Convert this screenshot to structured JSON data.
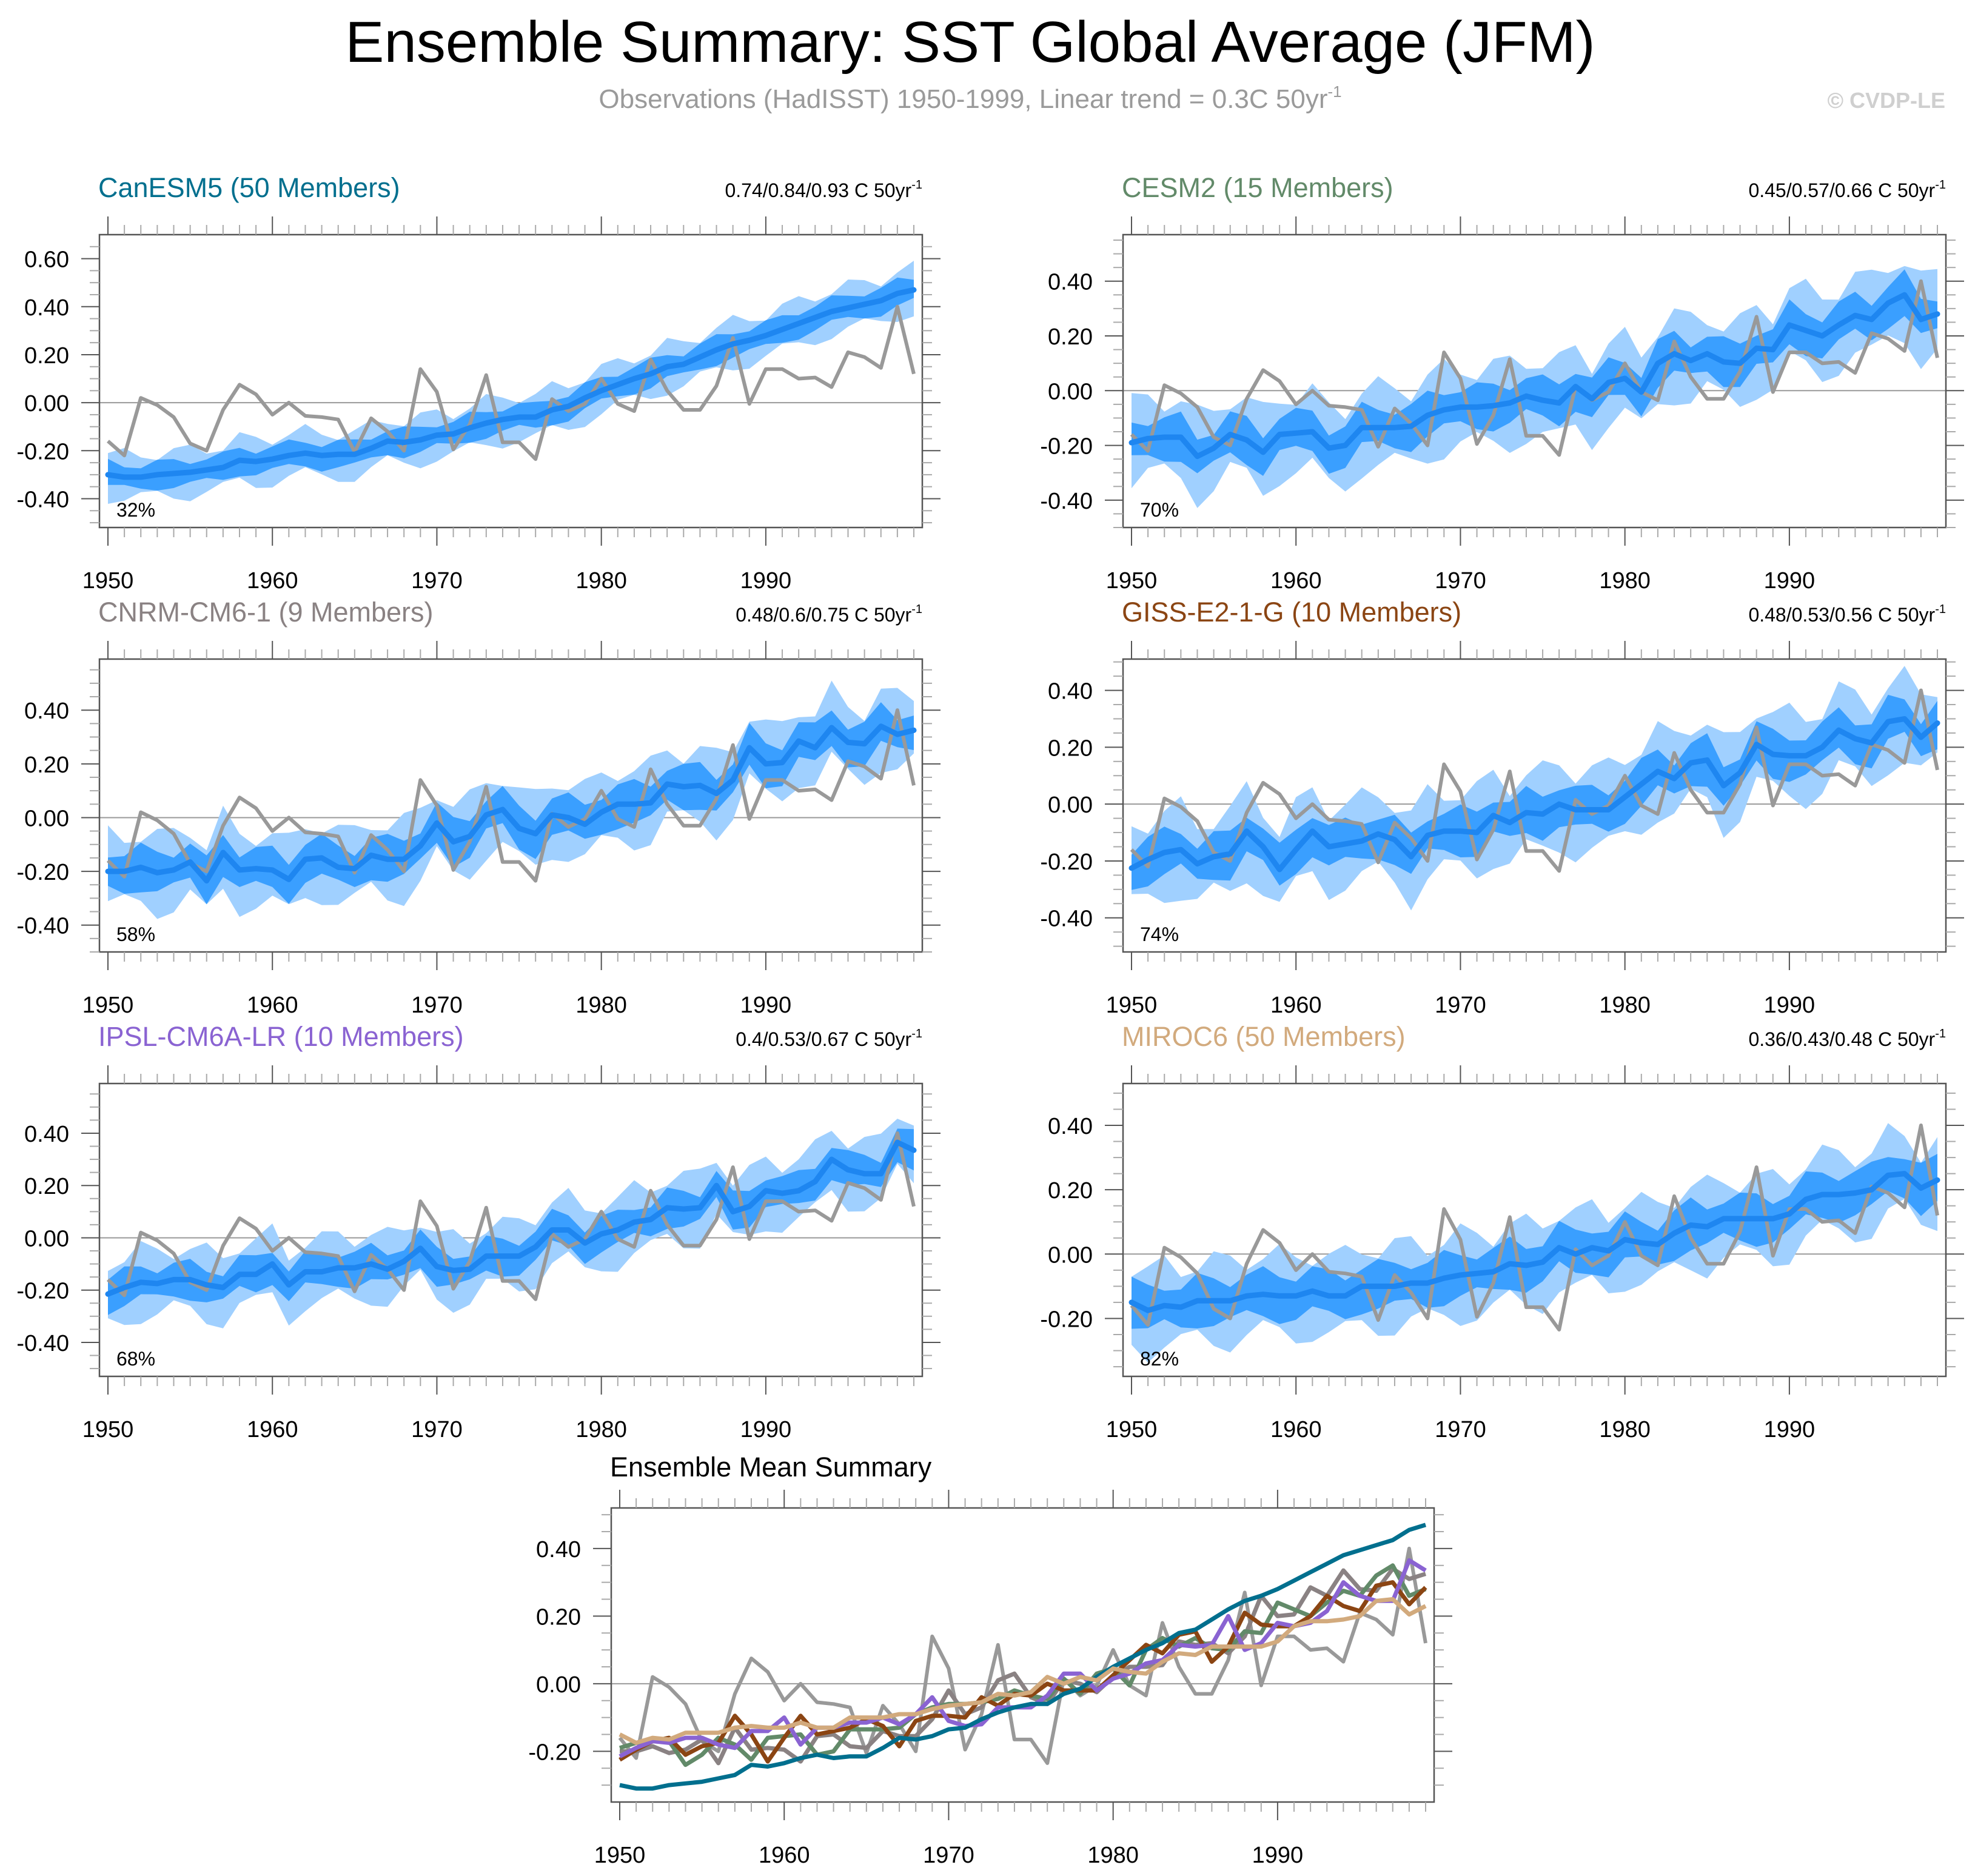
{
  "header": {
    "title": "Ensemble Summary: SST Global Average (JFM)",
    "subtitle": "Observations (HadISST) 1950-1999, Linear trend = 0.3C 50yr",
    "subtitle_superscript": "-1",
    "copyright": "© CVDP-LE"
  },
  "colors": {
    "band_outer": "#a0d0ff",
    "band_inner": "#3a9fff",
    "ensemble_mean": "#1e86f0",
    "observations": "#999999",
    "zero_line": "#9a9a9a",
    "frame": "#555555"
  },
  "chart_data": [
    {
      "type": "line",
      "id": "CanESM5",
      "title": "CanESM5 (50 Members)",
      "title_color": "#006f8e",
      "trend_text": "0.74/0.84/0.93 C 50yr",
      "trend_superscript": "-1",
      "percent_label": "32%",
      "xlim": [
        1950,
        1999
      ],
      "xticks": [
        "1950",
        "1960",
        "1970",
        "1980",
        "1990"
      ],
      "ylim": [
        -0.52,
        0.7
      ],
      "yticks": [
        "-0.40",
        "-0.20",
        "0.00",
        "0.20",
        "0.40",
        "0.60"
      ],
      "band_inner_halfwidth": 0.05,
      "band_outer_halfwidth": 0.09,
      "ensemble_mean": [
        -0.3,
        -0.31,
        -0.31,
        -0.3,
        -0.295,
        -0.29,
        -0.28,
        -0.27,
        -0.24,
        -0.245,
        -0.235,
        -0.22,
        -0.21,
        -0.22,
        -0.215,
        -0.215,
        -0.19,
        -0.16,
        -0.165,
        -0.155,
        -0.135,
        -0.13,
        -0.105,
        -0.085,
        -0.07,
        -0.06,
        -0.06,
        -0.03,
        -0.015,
        0.02,
        0.05,
        0.075,
        0.1,
        0.12,
        0.15,
        0.16,
        0.19,
        0.22,
        0.245,
        0.26,
        0.28,
        0.305,
        0.33,
        0.355,
        0.38,
        0.395,
        0.41,
        0.425,
        0.455,
        0.47
      ]
    },
    {
      "type": "line",
      "id": "CESM2",
      "title": "CESM2 (15 Members)",
      "title_color": "#628a69",
      "trend_text": "0.45/0.57/0.66 C 50yr",
      "trend_superscript": "-1",
      "percent_label": "70%",
      "xlim": [
        1950,
        1999
      ],
      "xticks": [
        "1950",
        "1960",
        "1970",
        "1980",
        "1990"
      ],
      "ylim": [
        -0.5,
        0.57
      ],
      "yticks": [
        "-0.40",
        "-0.20",
        "0.00",
        "0.20",
        "0.40"
      ],
      "band_inner_halfwidth": 0.07,
      "band_outer_halfwidth": 0.14,
      "ensemble_mean": [
        -0.19,
        -0.175,
        -0.17,
        -0.17,
        -0.24,
        -0.21,
        -0.16,
        -0.18,
        -0.225,
        -0.16,
        -0.155,
        -0.15,
        -0.21,
        -0.2,
        -0.135,
        -0.135,
        -0.135,
        -0.13,
        -0.09,
        -0.07,
        -0.06,
        -0.06,
        -0.055,
        -0.045,
        -0.02,
        -0.035,
        -0.045,
        0.015,
        -0.03,
        0.03,
        0.045,
        -0.005,
        0.1,
        0.135,
        0.11,
        0.135,
        0.105,
        0.1,
        0.155,
        0.15,
        0.24,
        0.22,
        0.2,
        0.24,
        0.275,
        0.26,
        0.32,
        0.35,
        0.26,
        0.28
      ]
    },
    {
      "type": "line",
      "id": "CNRM-CM6-1",
      "title": "CNRM-CM6-1 (9 Members)",
      "title_color": "#8a8283",
      "trend_text": "0.48/0.6/0.75 C 50yr",
      "trend_superscript": "-1",
      "percent_label": "58%",
      "xlim": [
        1950,
        1999
      ],
      "xticks": [
        "1950",
        "1960",
        "1970",
        "1980",
        "1990"
      ],
      "ylim": [
        -0.5,
        0.59
      ],
      "yticks": [
        "-0.40",
        "-0.20",
        "0.00",
        "0.20",
        "0.40"
      ],
      "band_inner_halfwidth": 0.07,
      "band_outer_halfwidth": 0.13,
      "ensemble_mean": [
        -0.2,
        -0.2,
        -0.185,
        -0.205,
        -0.195,
        -0.165,
        -0.235,
        -0.13,
        -0.195,
        -0.19,
        -0.195,
        -0.23,
        -0.155,
        -0.15,
        -0.185,
        -0.19,
        -0.14,
        -0.155,
        -0.155,
        -0.105,
        -0.02,
        -0.09,
        -0.07,
        0.01,
        0.03,
        -0.04,
        -0.06,
        0.01,
        0.0,
        -0.025,
        0.02,
        0.05,
        0.05,
        0.055,
        0.125,
        0.115,
        0.12,
        0.09,
        0.14,
        0.26,
        0.2,
        0.205,
        0.285,
        0.26,
        0.335,
        0.28,
        0.275,
        0.34,
        0.31,
        0.325
      ]
    },
    {
      "type": "line",
      "id": "GISS-E2-1-G",
      "title": "GISS-E2-1-G (10 Members)",
      "title_color": "#8b4513",
      "trend_text": "0.48/0.53/0.56 C 50yr",
      "trend_superscript": "-1",
      "percent_label": "74%",
      "xlim": [
        1950,
        1999
      ],
      "xticks": [
        "1950",
        "1960",
        "1970",
        "1980",
        "1990"
      ],
      "ylim": [
        -0.52,
        0.51
      ],
      "yticks": [
        "-0.40",
        "-0.20",
        "0.00",
        "0.20",
        "0.40"
      ],
      "band_inner_halfwidth": 0.07,
      "band_outer_halfwidth": 0.14,
      "ensemble_mean": [
        -0.225,
        -0.195,
        -0.17,
        -0.16,
        -0.21,
        -0.185,
        -0.175,
        -0.095,
        -0.15,
        -0.23,
        -0.16,
        -0.095,
        -0.15,
        -0.14,
        -0.13,
        -0.105,
        -0.125,
        -0.185,
        -0.11,
        -0.095,
        -0.095,
        -0.1,
        -0.04,
        -0.065,
        -0.03,
        -0.035,
        0.0,
        -0.02,
        -0.02,
        -0.02,
        0.025,
        0.07,
        0.115,
        0.09,
        0.145,
        0.155,
        0.065,
        0.11,
        0.21,
        0.175,
        0.17,
        0.17,
        0.2,
        0.26,
        0.23,
        0.215,
        0.29,
        0.3,
        0.235,
        0.285
      ]
    },
    {
      "type": "line",
      "id": "IPSL-CM6A-LR",
      "title": "IPSL-CM6A-LR (10 Members)",
      "title_color": "#8a63d2",
      "trend_text": "0.4/0.53/0.67 C 50yr",
      "trend_superscript": "-1",
      "percent_label": "68%",
      "xlim": [
        1950,
        1999
      ],
      "xticks": [
        "1950",
        "1960",
        "1970",
        "1980",
        "1990"
      ],
      "ylim": [
        -0.53,
        0.59
      ],
      "yticks": [
        "-0.40",
        "-0.20",
        "0.00",
        "0.20",
        "0.40"
      ],
      "band_inner_halfwidth": 0.06,
      "band_outer_halfwidth": 0.12,
      "ensemble_mean": [
        -0.215,
        -0.19,
        -0.17,
        -0.175,
        -0.16,
        -0.16,
        -0.18,
        -0.19,
        -0.14,
        -0.14,
        -0.1,
        -0.18,
        -0.13,
        -0.13,
        -0.115,
        -0.115,
        -0.1,
        -0.12,
        -0.09,
        -0.04,
        -0.11,
        -0.125,
        -0.12,
        -0.07,
        -0.07,
        -0.07,
        -0.035,
        0.03,
        0.03,
        -0.02,
        0.015,
        0.03,
        0.06,
        0.07,
        0.115,
        0.11,
        0.115,
        0.2,
        0.1,
        0.12,
        0.18,
        0.17,
        0.18,
        0.215,
        0.3,
        0.26,
        0.245,
        0.245,
        0.365,
        0.335
      ]
    },
    {
      "type": "line",
      "id": "MIROC6",
      "title": "MIROC6 (50 Members)",
      "title_color": "#d2aa7d",
      "trend_text": "0.36/0.43/0.48 C 50yr",
      "trend_superscript": "-1",
      "percent_label": "82%",
      "xlim": [
        1950,
        1999
      ],
      "xticks": [
        "1950",
        "1960",
        "1970",
        "1980",
        "1990"
      ],
      "ylim": [
        -0.38,
        0.53
      ],
      "yticks": [
        "-0.20",
        "0.00",
        "0.20",
        "0.40"
      ],
      "band_inner_halfwidth": 0.065,
      "band_outer_halfwidth": 0.12,
      "ensemble_mean": [
        -0.15,
        -0.175,
        -0.16,
        -0.165,
        -0.145,
        -0.145,
        -0.145,
        -0.13,
        -0.125,
        -0.13,
        -0.13,
        -0.115,
        -0.13,
        -0.13,
        -0.1,
        -0.1,
        -0.1,
        -0.09,
        -0.09,
        -0.075,
        -0.065,
        -0.06,
        -0.055,
        -0.03,
        -0.035,
        -0.025,
        0.02,
        0.0,
        0.02,
        0.01,
        0.045,
        0.035,
        0.03,
        0.065,
        0.09,
        0.085,
        0.11,
        0.11,
        0.11,
        0.11,
        0.125,
        0.17,
        0.185,
        0.185,
        0.19,
        0.2,
        0.245,
        0.25,
        0.205,
        0.23
      ]
    },
    {
      "type": "line",
      "id": "summary",
      "title": "Ensemble Mean Summary",
      "xlim": [
        1950,
        1999
      ],
      "xticks": [
        "1950",
        "1960",
        "1970",
        "1980",
        "1990"
      ],
      "ylim": [
        -0.35,
        0.52
      ],
      "yticks": [
        "-0.20",
        "0.00",
        "0.20",
        "0.40"
      ],
      "series_from": [
        "CanESM5",
        "CESM2",
        "CNRM-CM6-1",
        "GISS-E2-1-G",
        "IPSL-CM6A-LR",
        "MIROC6"
      ],
      "include_observations": true
    }
  ],
  "observations": {
    "name": "HadISST",
    "years": [
      1950,
      1999
    ],
    "values": [
      -0.16,
      -0.22,
      0.02,
      -0.01,
      -0.06,
      -0.17,
      -0.2,
      -0.03,
      0.075,
      0.035,
      -0.05,
      0.0,
      -0.055,
      -0.06,
      -0.07,
      -0.205,
      -0.065,
      -0.12,
      -0.2,
      0.14,
      0.045,
      -0.195,
      -0.09,
      0.115,
      -0.165,
      -0.165,
      -0.235,
      0.015,
      -0.035,
      -0.005,
      0.1,
      -0.005,
      -0.035,
      0.18,
      0.05,
      -0.03,
      -0.03,
      0.07,
      0.27,
      -0.005,
      0.14,
      0.14,
      0.1,
      0.105,
      0.065,
      0.21,
      0.19,
      0.145,
      0.4,
      0.12
    ]
  }
}
